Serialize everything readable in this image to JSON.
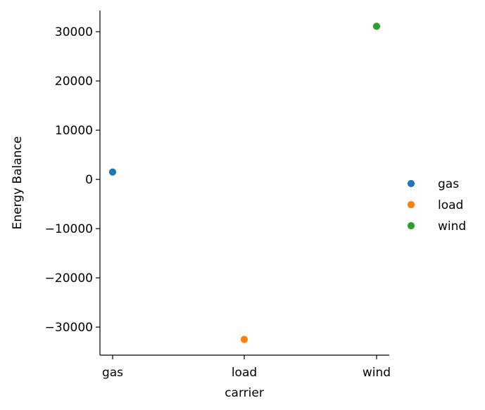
{
  "chart_data": {
    "type": "scatter",
    "xlabel": "carrier",
    "ylabel": "Energy Balance",
    "categories": [
      "gas",
      "load",
      "wind"
    ],
    "points": [
      {
        "x": "gas",
        "y": 1500,
        "color": "#1f77b4"
      },
      {
        "x": "load",
        "y": -32500,
        "color": "#ff7f0e"
      },
      {
        "x": "wind",
        "y": 31100,
        "color": "#2ca02c"
      }
    ],
    "yticks": [
      30000,
      20000,
      10000,
      0,
      -10000,
      -20000,
      -30000
    ],
    "ytick_labels": [
      "30000",
      "20000",
      "10000",
      "0",
      "−10000",
      "−20000",
      "−30000"
    ],
    "ylim": [
      -35700,
      34300
    ],
    "legend": {
      "placement": "right",
      "entries": [
        {
          "label": "gas",
          "color": "#1f77b4"
        },
        {
          "label": "load",
          "color": "#ff7f0e"
        },
        {
          "label": "wind",
          "color": "#2ca02c"
        }
      ]
    },
    "grid": false
  }
}
